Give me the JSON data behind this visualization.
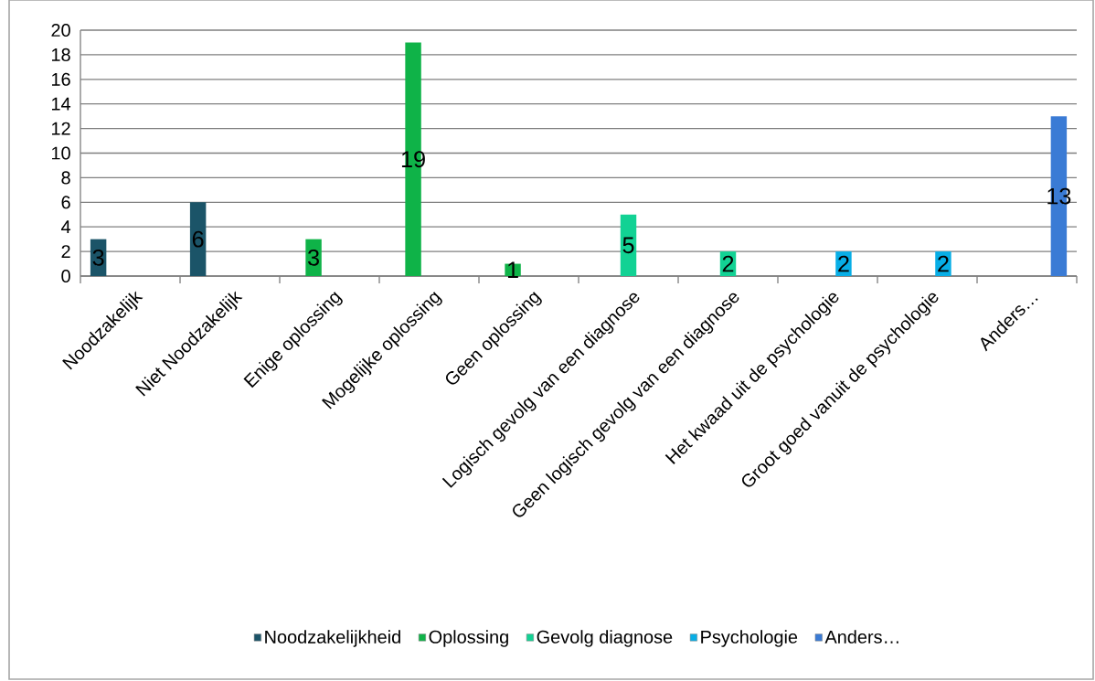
{
  "chart_data": {
    "type": "bar",
    "categories": [
      "Noodzakelijk",
      "Niet Noodzakelijk",
      "Enige oplossing",
      "Mogelijke oplossing",
      "Geen oplossing",
      "Logisch gevolg van een diagnose",
      "Geen logisch gevolg van een diagnose",
      "Het kwaad uit de psychologie",
      "Groot goed vanuit de psychologie",
      "Anders…"
    ],
    "series": [
      {
        "name": "Noodzakelijkheid",
        "color": "#1b5468",
        "values": [
          3,
          6,
          null,
          null,
          null,
          null,
          null,
          null,
          null,
          null
        ]
      },
      {
        "name": "Oplossing",
        "color": "#0fb348",
        "values": [
          null,
          null,
          3,
          19,
          1,
          null,
          null,
          null,
          null,
          null
        ]
      },
      {
        "name": "Gevolg diagnose",
        "color": "#12d294",
        "values": [
          null,
          null,
          null,
          null,
          null,
          5,
          2,
          null,
          null,
          null
        ]
      },
      {
        "name": "Psychologie",
        "color": "#08aee6",
        "values": [
          null,
          null,
          null,
          null,
          null,
          null,
          null,
          2,
          2,
          null
        ]
      },
      {
        "name": "Anders…",
        "color": "#3a7bd5",
        "values": [
          null,
          null,
          null,
          null,
          null,
          null,
          null,
          null,
          null,
          13
        ]
      }
    ],
    "ylim": [
      0,
      20
    ],
    "yticks": [
      0,
      2,
      4,
      6,
      8,
      10,
      12,
      14,
      16,
      18,
      20
    ],
    "grid": "y",
    "legend": "bottom",
    "data_labels": true
  }
}
